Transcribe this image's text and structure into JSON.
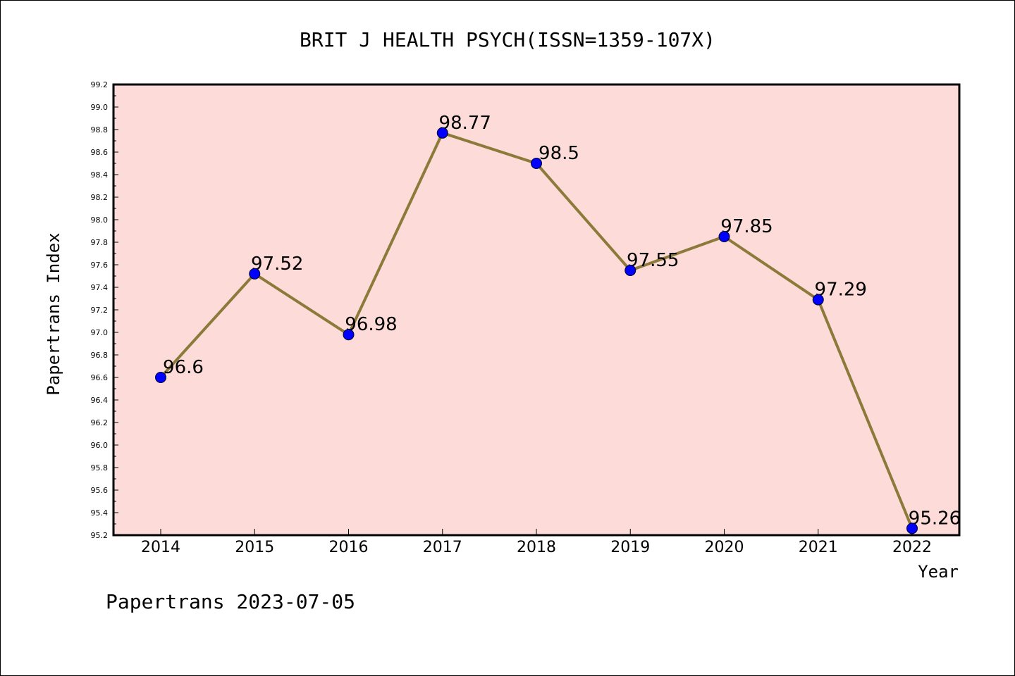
{
  "chart_data": {
    "type": "line",
    "title": "BRIT J HEALTH PSYCH(ISSN=1359-107X)",
    "xlabel": "Year",
    "ylabel": "Papertrans Index",
    "categories": [
      "2014",
      "2015",
      "2016",
      "2017",
      "2018",
      "2019",
      "2020",
      "2021",
      "2022"
    ],
    "series": [
      {
        "values": [
          96.6,
          97.52,
          96.98,
          98.77,
          98.5,
          97.55,
          97.85,
          97.29,
          95.26
        ],
        "labels": [
          "96.6",
          "97.52",
          "96.98",
          "98.77",
          "98.5",
          "97.55",
          "97.85",
          "97.29",
          "95.26"
        ]
      }
    ],
    "ylim": [
      95.2,
      99.2
    ],
    "yticks": [
      "95.2",
      "95.4",
      "95.6",
      "95.8",
      "96.0",
      "96.2",
      "96.4",
      "96.6",
      "96.8",
      "97.0",
      "97.2",
      "97.4",
      "97.6",
      "97.8",
      "98.0",
      "98.2",
      "98.4",
      "98.6",
      "98.8",
      "99.0",
      "99.2"
    ],
    "grid": false,
    "colors": {
      "plot_background": "#fddbd8",
      "line": "#8c7a3a",
      "marker": "#0000ff"
    }
  },
  "footer": "Papertrans 2023-07-05"
}
